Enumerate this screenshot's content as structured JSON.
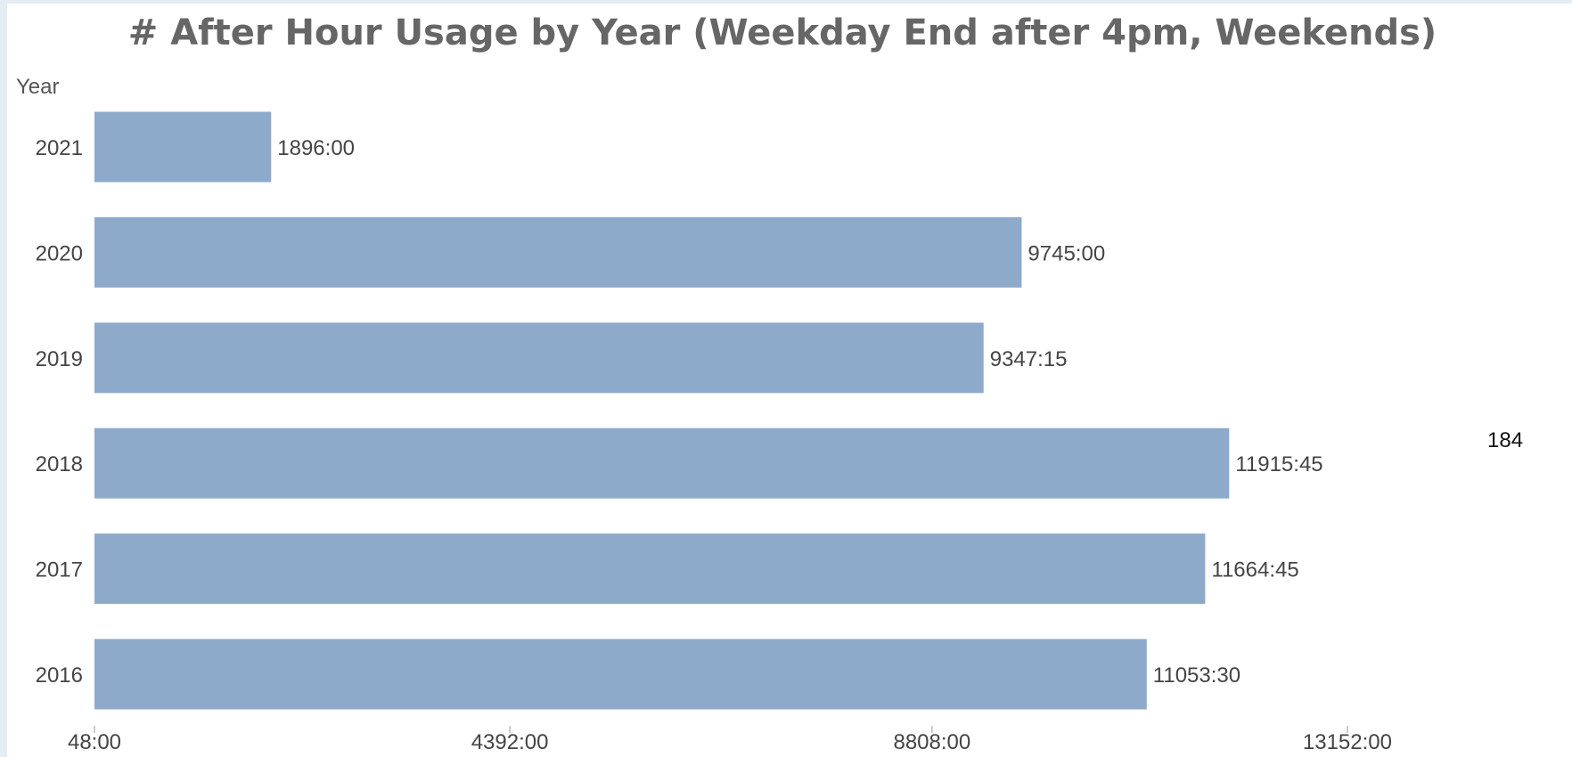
{
  "window": {
    "title": "# After Hour Usage by Year (Weekday End after 4pm, Weekends)",
    "axis_caption": "Year",
    "stray_text": "184"
  },
  "colors": {
    "bar": "#8eaacb",
    "background": "#e4edf5",
    "panel": "#ffffff",
    "title": "#666666"
  },
  "chart_data": {
    "type": "bar",
    "orientation": "horizontal",
    "title": "# After Hour Usage by Year (Weekday End after 4pm, Weekends)",
    "ylabel": "Year",
    "xlabel": "",
    "categories": [
      "2021",
      "2020",
      "2019",
      "2018",
      "2017",
      "2016"
    ],
    "values": [
      1896.0,
      9745.0,
      9347.25,
      11915.75,
      11664.75,
      11053.5
    ],
    "value_labels": [
      "1896:00",
      "9745:00",
      "9347:15",
      "11915:45",
      "11664:45",
      "11053:30"
    ],
    "xlim": [
      48,
      15324
    ],
    "x_ticks": [
      48,
      4392,
      8808,
      13152
    ],
    "x_tick_labels": [
      "48:00",
      "4392:00",
      "8808:00",
      "13152:00"
    ],
    "grid": false,
    "legend": "none"
  }
}
